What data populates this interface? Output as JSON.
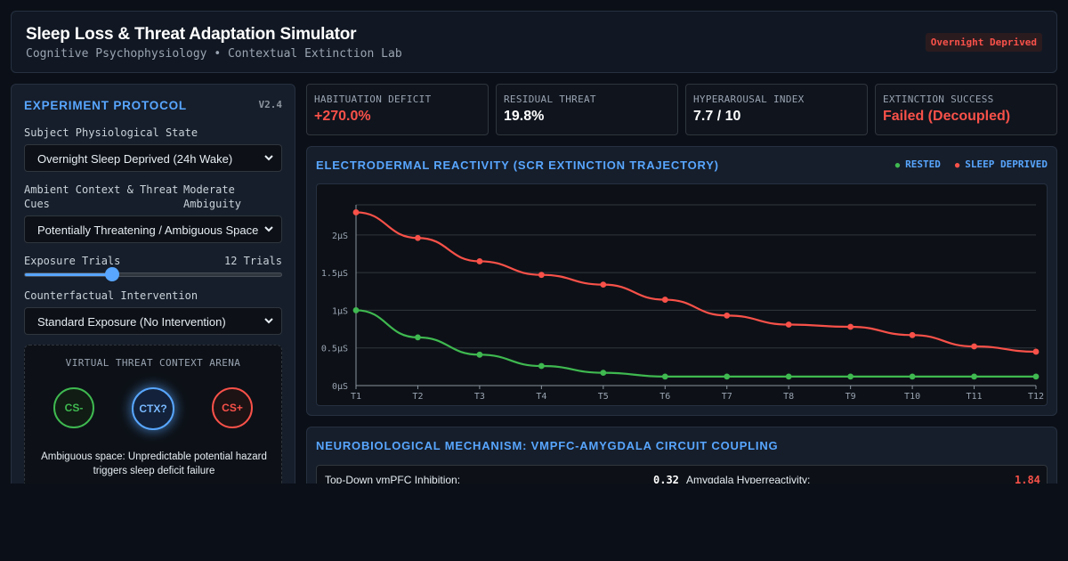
{
  "header": {
    "title": "Sleep Loss & Threat Adaptation Simulator",
    "subtitle": "Cognitive Psychophysiology • Contextual Extinction Lab",
    "badge": "Overnight Deprived"
  },
  "protocol": {
    "heading": "EXPERIMENT PROTOCOL",
    "version": "V2.4",
    "state_label": "Subject Physiological State",
    "state_value": "Overnight Sleep Deprived (24h Wake)",
    "context_label_line1": "Ambient Context & Threat",
    "context_label_line2": "Cues",
    "context_level_line1": "Moderate",
    "context_level_line2": "Ambiguity",
    "context_value": "Potentially Threatening / Ambiguous Space",
    "trials_label": "Exposure Trials",
    "trials_value": "12 Trials",
    "trials_slider_fraction": 0.34,
    "intervention_label": "Counterfactual Intervention",
    "intervention_value": "Standard Exposure (No Intervention)"
  },
  "arena": {
    "title": "VIRTUAL THREAT CONTEXT ARENA",
    "node_cs_minus": "CS-",
    "node_ctx": "CTX?",
    "node_cs_plus": "CS+",
    "description": "Ambiguous space: Unpredictable potential hazard triggers sleep deficit failure"
  },
  "metrics": [
    {
      "label": "HABITUATION DEFICIT",
      "value": "+270.0%",
      "color": "#f85149"
    },
    {
      "label": "RESIDUAL THREAT",
      "value": "19.8%",
      "color": "#ffffff"
    },
    {
      "label": "HYPERAROUSAL INDEX",
      "value": "7.7 / 10",
      "color": "#ffffff"
    },
    {
      "label": "EXTINCTION SUCCESS",
      "value": "Failed (Decoupled)",
      "color": "#f85149"
    }
  ],
  "chart_title": "ELECTRODERMAL REACTIVITY (SCR EXTINCTION TRAJECTORY)",
  "legend": {
    "rested": "RESTED",
    "deprived": "SLEEP DEPRIVED"
  },
  "chart_data": {
    "type": "line",
    "title": "ELECTRODERMAL REACTIVITY (SCR EXTINCTION TRAJECTORY)",
    "x": [
      "T1",
      "T2",
      "T3",
      "T4",
      "T5",
      "T6",
      "T7",
      "T8",
      "T9",
      "T10",
      "T11",
      "T12"
    ],
    "y_ticks": [
      "0μS",
      "0.5μS",
      "1μS",
      "1.5μS",
      "2μS"
    ],
    "ylim": [
      0,
      2.4
    ],
    "grid": true,
    "legend_position": "top-right",
    "series": [
      {
        "name": "RESTED",
        "color": "#3fb950",
        "values": [
          1.0,
          0.64,
          0.41,
          0.26,
          0.17,
          0.12,
          0.12,
          0.12,
          0.12,
          0.12,
          0.12,
          0.12
        ]
      },
      {
        "name": "SLEEP DEPRIVED",
        "color": "#f85149",
        "values": [
          2.3,
          1.96,
          1.65,
          1.47,
          1.34,
          1.14,
          0.93,
          0.81,
          0.78,
          0.67,
          0.52,
          0.45
        ]
      }
    ]
  },
  "mechanism": {
    "title": "NEUROBIOLOGICAL MECHANISM: VMPFC-AMYGDALA CIRCUIT COUPLING",
    "vmpfc_label": "Top-Down vmPFC Inhibition:",
    "vmpfc_value": "0.32",
    "amygdala_label": "Amygdala Hyperreactivity:",
    "amygdala_value": "1.84"
  }
}
